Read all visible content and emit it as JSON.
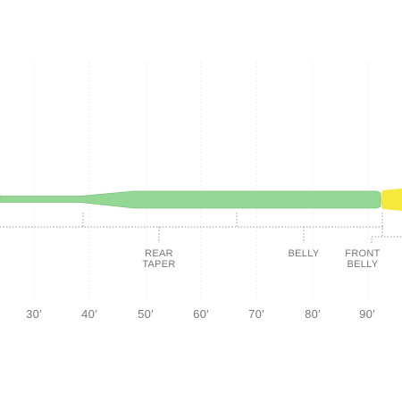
{
  "axis": {
    "labels": [
      "30′",
      "40′",
      "50′",
      "60′",
      "70′",
      "80′",
      "90′"
    ]
  },
  "sections": [
    {
      "lines": [
        "REAR",
        "TAPER"
      ]
    },
    {
      "lines": [
        "BELLY"
      ]
    },
    {
      "lines": [
        "FRONT",
        "BELLY"
      ]
    }
  ]
}
